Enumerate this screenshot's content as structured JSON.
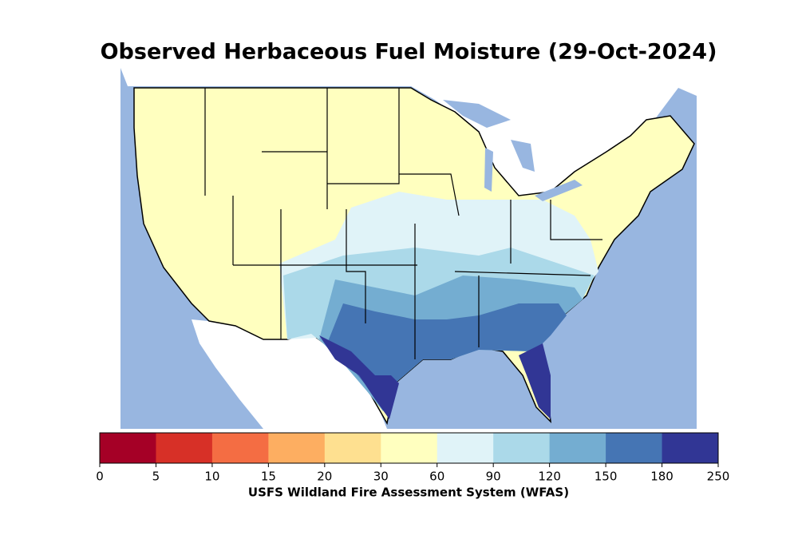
{
  "title": "Observed Herbaceous Fuel Moisture (29-Oct-2024)",
  "colorbar": {
    "label": "USFS Wildland Fire Assessment System (WFAS)",
    "boundaries": [
      0,
      5,
      10,
      15,
      20,
      30,
      60,
      90,
      120,
      150,
      180,
      250
    ],
    "colors": [
      "#a50026",
      "#d73027",
      "#f46d43",
      "#fdae61",
      "#fee090",
      "#ffffbf",
      "#e0f3f8",
      "#abd9e9",
      "#74add1",
      "#4575b4",
      "#313695"
    ]
  }
}
